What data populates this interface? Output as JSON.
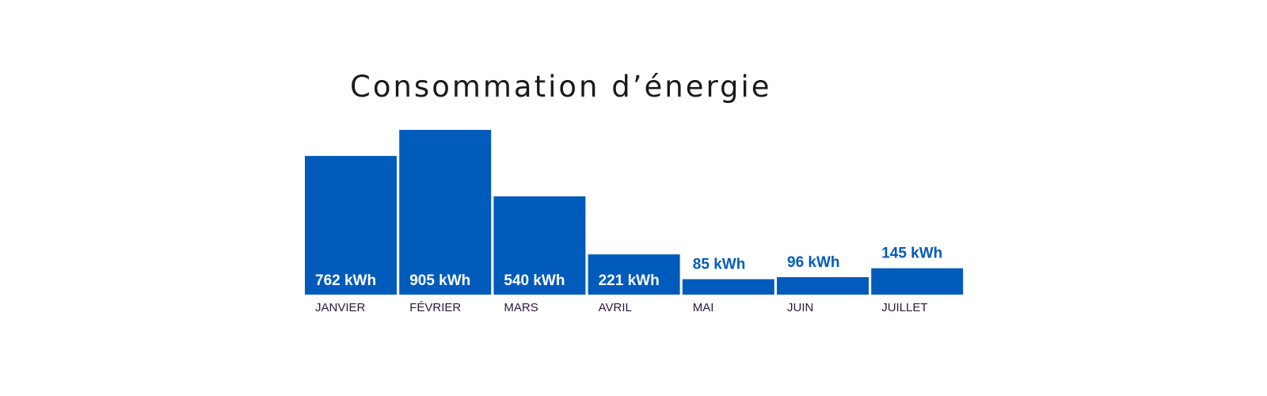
{
  "chart_data": {
    "type": "bar",
    "title": "Consommation d’énergie",
    "categories": [
      "JANVIER",
      "FÉVRIER",
      "MARS",
      "AVRIL",
      "MAI",
      "JUIN",
      "JUILLET"
    ],
    "values": [
      762,
      905,
      540,
      221,
      85,
      96,
      145
    ],
    "value_labels": [
      "762 kWh",
      "905 kWh",
      "540 kWh",
      "221 kWh",
      "85 kWh",
      "96 kWh",
      "145 kWh"
    ],
    "unit": "kWh",
    "xlabel": "",
    "ylabel": "",
    "ylim": [
      0,
      905
    ],
    "grid": false,
    "legend": "none",
    "colors": {
      "bar": "#005bbb",
      "label_inside": "#ffffff",
      "label_outside": "#005bbb",
      "category_text": "#2a1838",
      "title_text": "#1a1a1a"
    }
  }
}
